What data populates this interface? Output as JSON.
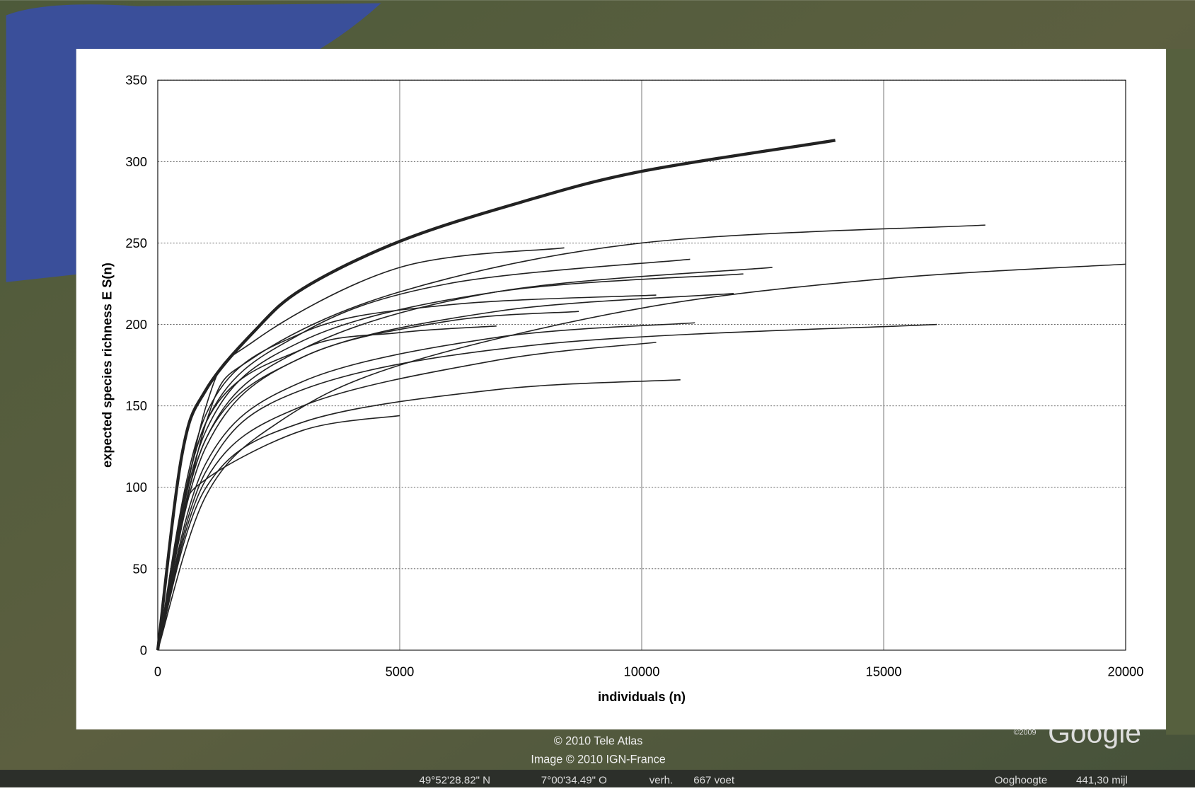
{
  "chart_data": {
    "type": "line",
    "xlabel": "individuals (n)",
    "ylabel": "expected species richness E S(n)",
    "xlim": [
      0,
      20000
    ],
    "xticks": [
      0,
      5000,
      10000,
      15000,
      20000
    ],
    "ylim": [
      0,
      350
    ],
    "yticks": [
      0,
      50,
      100,
      150,
      200,
      250,
      300,
      350
    ],
    "grid": true,
    "series": [
      {
        "color": "#222222",
        "line_width": 4,
        "x": [
          0,
          500,
          1000,
          2000,
          3000,
          5000,
          7500,
          10000,
          14000
        ],
        "values": [
          0,
          120,
          160,
          196,
          222,
          251,
          275,
          294,
          313
        ]
      },
      {
        "color": "#222222",
        "line_width": 1.5,
        "x": [
          0,
          1000,
          2000,
          5000,
          10000,
          17100
        ],
        "values": [
          0,
          140,
          180,
          220,
          250,
          261
        ]
      },
      {
        "color": "#222222",
        "line_width": 1.5,
        "x": [
          0,
          1000,
          2500,
          5000,
          10000,
          15000,
          20000
        ],
        "values": [
          0,
          95,
          140,
          175,
          210,
          228,
          237
        ]
      },
      {
        "color": "#222222",
        "line_width": 1.5,
        "x": [
          0,
          1000,
          2000,
          5000,
          8400
        ],
        "values": [
          0,
          150,
          190,
          235,
          247
        ]
      },
      {
        "color": "#222222",
        "line_width": 1.5,
        "x": [
          0,
          1000,
          3000,
          6000,
          11000
        ],
        "values": [
          0,
          140,
          195,
          225,
          240
        ]
      },
      {
        "color": "#222222",
        "line_width": 1.5,
        "x": [
          0,
          1000,
          3000,
          7000,
          12700
        ],
        "values": [
          0,
          130,
          185,
          220,
          235
        ]
      },
      {
        "color": "#222222",
        "line_width": 1.5,
        "x": [
          0,
          1000,
          3000,
          7000,
          12100
        ],
        "values": [
          0,
          135,
          190,
          220,
          231
        ]
      },
      {
        "color": "#222222",
        "line_width": 1.5,
        "x": [
          0,
          1000,
          3000,
          7000,
          11900
        ],
        "values": [
          0,
          125,
          180,
          208,
          219
        ]
      },
      {
        "color": "#222222",
        "line_width": 1.5,
        "x": [
          0,
          1000,
          3000,
          6000,
          10300
        ],
        "values": [
          0,
          145,
          195,
          212,
          218
        ]
      },
      {
        "color": "#222222",
        "line_width": 1.5,
        "x": [
          0,
          1000,
          3000,
          6000,
          8700
        ],
        "values": [
          0,
          130,
          180,
          202,
          208
        ]
      },
      {
        "color": "#222222",
        "line_width": 1.5,
        "x": [
          0,
          1000,
          3000,
          5000,
          7000
        ],
        "values": [
          0,
          140,
          185,
          195,
          199
        ]
      },
      {
        "color": "#222222",
        "line_width": 1.5,
        "x": [
          0,
          1000,
          3000,
          7000,
          11100
        ],
        "values": [
          0,
          115,
          165,
          192,
          201
        ]
      },
      {
        "color": "#222222",
        "line_width": 1.5,
        "x": [
          0,
          1000,
          3000,
          8000,
          16100
        ],
        "values": [
          0,
          110,
          160,
          188,
          200
        ]
      },
      {
        "color": "#222222",
        "line_width": 1.5,
        "x": [
          0,
          1000,
          3000,
          7000,
          10300
        ],
        "values": [
          0,
          105,
          150,
          178,
          189
        ]
      },
      {
        "color": "#222222",
        "line_width": 1.5,
        "x": [
          0,
          1000,
          3000,
          7000,
          10800
        ],
        "values": [
          0,
          100,
          140,
          160,
          166
        ]
      },
      {
        "color": "#222222",
        "line_width": 1.5,
        "x": [
          0,
          500,
          1000,
          3000,
          5000
        ],
        "values": [
          0,
          80,
          105,
          135,
          144
        ]
      }
    ]
  },
  "background": {
    "credits": [
      "© 2010 Tele Atlas",
      "Image © 2010 IGN-France"
    ],
    "status": [
      "49°52'28.82\" N",
      "7°00'34.49\" O",
      "verh.",
      "667 voet",
      "Ooghoogte",
      "441,30 mijl"
    ],
    "logo_year": "©2009",
    "logo": "Google"
  }
}
